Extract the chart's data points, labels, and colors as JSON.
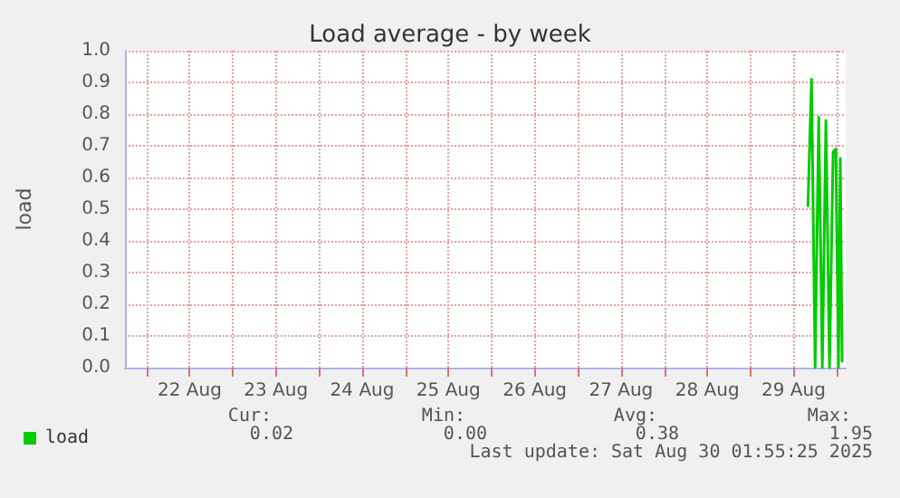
{
  "chart_data": {
    "type": "line",
    "title": "Load average - by week",
    "ylabel": "load",
    "x": [
      "2025-08-29T16:00",
      "2025-08-29T17:00",
      "2025-08-29T18:00",
      "2025-08-29T19:00",
      "2025-08-29T20:00",
      "2025-08-29T21:00",
      "2025-08-29T22:00",
      "2025-08-29T23:00",
      "2025-08-29T23:45",
      "2025-08-30T00:30",
      "2025-08-30T01:00",
      "2025-08-30T01:30"
    ],
    "series": [
      {
        "name": "load",
        "color": "#00cc00",
        "values": [
          0.51,
          0.91,
          0.0,
          0.79,
          0.0,
          0.78,
          0.0,
          0.68,
          0.69,
          0.0,
          0.66,
          0.02
        ]
      }
    ],
    "xlim": [
      "2025-08-21T18:00",
      "2025-08-30T02:30"
    ],
    "xticks": [
      {
        "value": "2025-08-22T00:00",
        "label": null
      },
      {
        "value": "2025-08-22T12:00",
        "label": "22 Aug"
      },
      {
        "value": "2025-08-23T00:00",
        "label": null
      },
      {
        "value": "2025-08-23T12:00",
        "label": "23 Aug"
      },
      {
        "value": "2025-08-24T00:00",
        "label": null
      },
      {
        "value": "2025-08-24T12:00",
        "label": "24 Aug"
      },
      {
        "value": "2025-08-25T00:00",
        "label": null
      },
      {
        "value": "2025-08-25T12:00",
        "label": "25 Aug"
      },
      {
        "value": "2025-08-26T00:00",
        "label": null
      },
      {
        "value": "2025-08-26T12:00",
        "label": "26 Aug"
      },
      {
        "value": "2025-08-27T00:00",
        "label": null
      },
      {
        "value": "2025-08-27T12:00",
        "label": "27 Aug"
      },
      {
        "value": "2025-08-28T00:00",
        "label": null
      },
      {
        "value": "2025-08-28T12:00",
        "label": "28 Aug"
      },
      {
        "value": "2025-08-29T00:00",
        "label": null
      },
      {
        "value": "2025-08-29T12:00",
        "label": "29 Aug"
      },
      {
        "value": "2025-08-30T00:00",
        "label": null
      }
    ],
    "ylim": [
      0,
      1
    ],
    "yticks": [
      {
        "value": 0,
        "label": "0.0"
      },
      {
        "value": 0.1,
        "label": "0.1"
      },
      {
        "value": 0.2,
        "label": "0.2"
      },
      {
        "value": 0.3,
        "label": "0.3"
      },
      {
        "value": 0.4,
        "label": "0.4"
      },
      {
        "value": 0.5,
        "label": "0.5"
      },
      {
        "value": 0.6,
        "label": "0.6"
      },
      {
        "value": 0.7,
        "label": "0.7"
      },
      {
        "value": 0.8,
        "label": "0.8"
      },
      {
        "value": 0.9,
        "label": "0.9"
      },
      {
        "value": 1,
        "label": "1.0"
      }
    ],
    "grid": true,
    "legend": "bottom left",
    "marker": "none",
    "line_style": "solid",
    "annotations": [
      "Cur:",
      "0.02",
      "Min:",
      "0.00",
      "Avg:",
      "0.38",
      "Max:",
      "1.95",
      "Last update: Sat Aug 30 01:55:25 2025"
    ]
  }
}
